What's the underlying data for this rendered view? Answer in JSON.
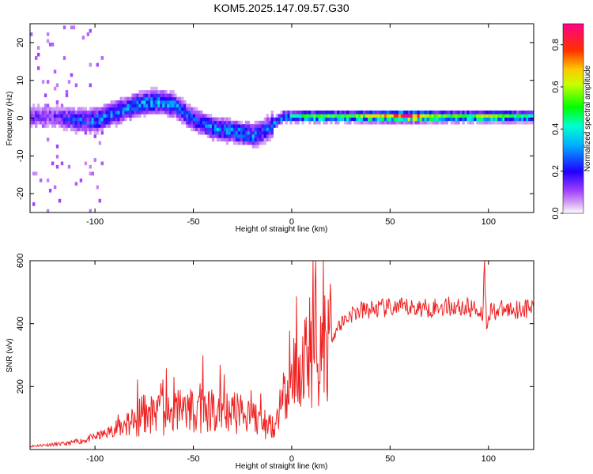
{
  "title": "KOM5.2025.147.09.57.G30",
  "chart_data": [
    {
      "type": "heatmap",
      "xlabel": "Height of straight line (km)",
      "ylabel": "Frequency (Hz)",
      "xlim": [
        -133,
        123
      ],
      "ylim": [
        -25,
        25
      ],
      "xticks": [
        "-100",
        "-50",
        "0",
        "50",
        "100"
      ],
      "xtick_values": [
        -100,
        -50,
        0,
        50,
        100
      ],
      "yticks": [
        "-20",
        "-10",
        "0",
        "10",
        "20"
      ],
      "ytick_values": [
        -20,
        -10,
        0,
        10,
        20
      ],
      "colorbar": {
        "label": "Normalized spectral amplitude",
        "range": [
          0.0,
          0.9
        ],
        "ticks": [
          "0.0",
          "0.2",
          "0.4",
          "0.6",
          "0.8"
        ],
        "tick_values": [
          0.0,
          0.2,
          0.4,
          0.6,
          0.8
        ],
        "colors": [
          "#ffffff",
          "#c58cf2",
          "#8000ff",
          "#0000ff",
          "#00ffff",
          "#00ff00",
          "#ffff00",
          "#ff8000",
          "#ff0000",
          "#ff0080"
        ]
      },
      "ridge": {
        "x": [
          -130,
          -120,
          -110,
          -100,
          -90,
          -80,
          -70,
          -60,
          -50,
          -40,
          -30,
          -20,
          -15,
          -10,
          -5,
          0,
          10,
          20,
          30,
          40,
          50,
          60,
          70,
          80,
          90,
          100,
          110,
          120
        ],
        "freq": [
          0,
          0,
          -1,
          -1,
          1,
          3,
          4,
          3,
          -1,
          -3,
          -4,
          -5,
          -4,
          -2,
          0,
          0,
          0,
          0,
          0,
          0,
          0,
          0,
          0,
          0,
          0,
          0,
          0,
          0
        ],
        "amplitude": [
          0.15,
          0.15,
          0.25,
          0.3,
          0.3,
          0.3,
          0.35,
          0.3,
          0.25,
          0.3,
          0.3,
          0.3,
          0.25,
          0.3,
          0.35,
          0.4,
          0.5,
          0.5,
          0.5,
          0.6,
          0.7,
          0.8,
          0.6,
          0.5,
          0.5,
          0.6,
          0.5,
          0.4
        ]
      }
    },
    {
      "type": "line",
      "xlabel": "Height of straight line (km)",
      "ylabel": "SNR (v/v)",
      "xlim": [
        -133,
        123
      ],
      "ylim": [
        0,
        600
      ],
      "xticks": [
        "-100",
        "-50",
        "0",
        "50",
        "100"
      ],
      "xtick_values": [
        -100,
        -50,
        0,
        50,
        100
      ],
      "yticks": [
        "200",
        "400",
        "600"
      ],
      "ytick_values": [
        200,
        400,
        600
      ],
      "color": "#ee2222",
      "series": [
        {
          "x": [
            -133,
            -125,
            -115,
            -105,
            -95,
            -90,
            -85,
            -80,
            -75,
            -70,
            -65,
            -60,
            -55,
            -50,
            -45,
            -40,
            -35,
            -30,
            -25,
            -20,
            -15,
            -10,
            -7,
            -5,
            -2,
            0,
            2,
            4,
            5,
            6,
            8,
            10,
            12,
            13,
            14,
            15,
            17,
            20,
            25,
            30,
            35,
            40,
            50,
            60,
            70,
            80,
            90,
            95,
            97,
            98,
            99,
            100,
            110,
            123
          ],
          "y": [
            10,
            15,
            18,
            30,
            50,
            65,
            80,
            95,
            110,
            120,
            110,
            115,
            125,
            130,
            125,
            120,
            125,
            115,
            120,
            105,
            80,
            80,
            95,
            150,
            170,
            190,
            220,
            240,
            270,
            290,
            300,
            320,
            380,
            230,
            200,
            430,
            340,
            360,
            400,
            430,
            440,
            445,
            450,
            450,
            450,
            455,
            450,
            445,
            430,
            600,
            380,
            440,
            445,
            450
          ]
        }
      ]
    }
  ]
}
